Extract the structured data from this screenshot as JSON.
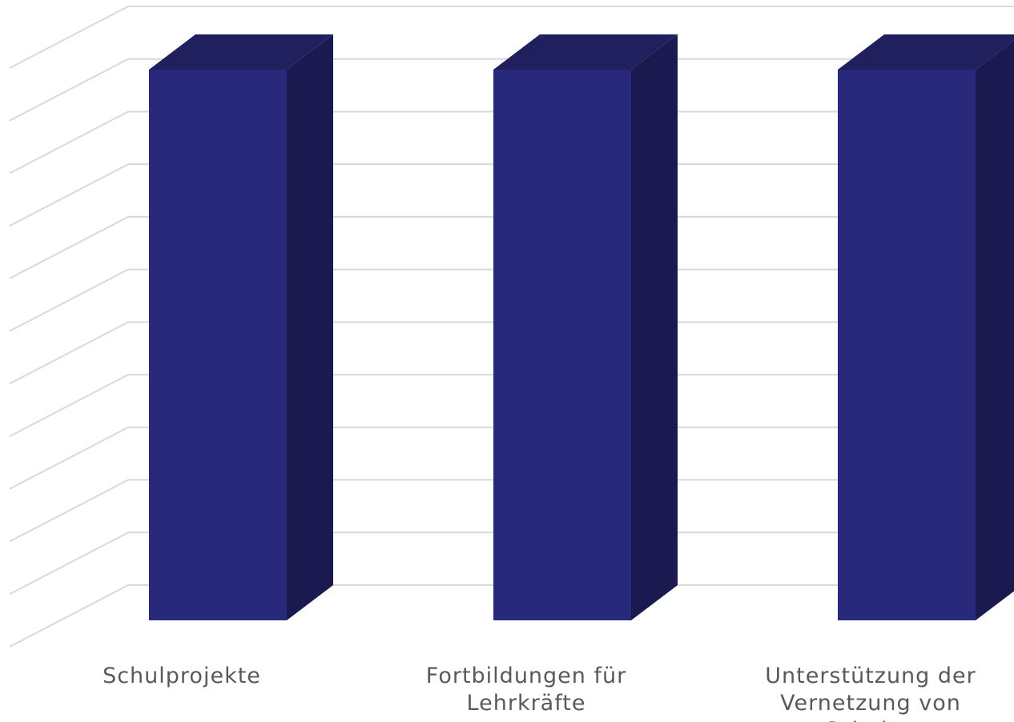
{
  "chart_data": {
    "type": "bar",
    "title": "",
    "xlabel": "",
    "ylabel": "",
    "categories": [
      "Schulprojekte",
      "Fortbildungen  für\nLehrkräfte",
      "Unterstützung der\nVernetzung von Schulen"
    ],
    "values": [
      1,
      1,
      1
    ],
    "ylim": [
      0,
      1.1
    ],
    "grid": true,
    "three_d": true,
    "legend": "none",
    "colors": {
      "bar_front": "#29297b",
      "bar_top": "#20205f",
      "bar_side": "#1a1a50",
      "grid": "#d9d9d9",
      "label": "#595959"
    }
  }
}
